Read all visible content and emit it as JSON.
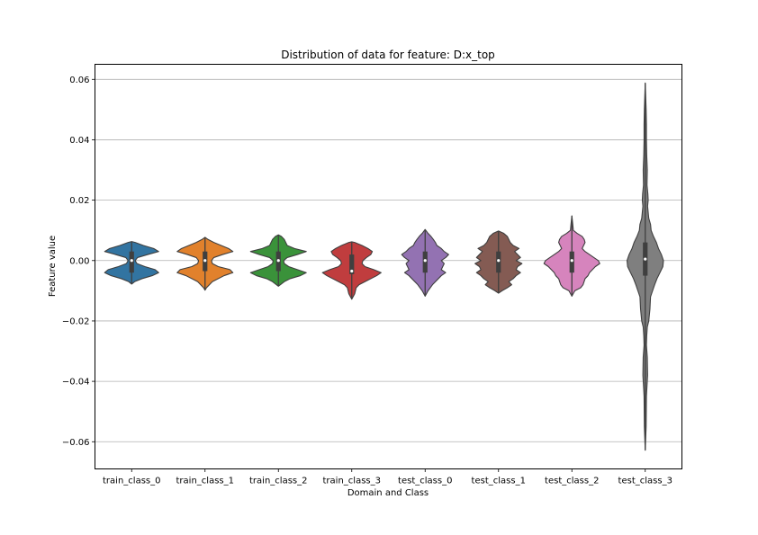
{
  "chart_data": {
    "type": "violin",
    "title": "Distribution of data for feature: D:x_top",
    "xlabel": "Domain and Class",
    "ylabel": "Feature value",
    "ylim": [
      -0.069,
      0.065
    ],
    "yticks": [
      0.06,
      0.04,
      0.02,
      0.0,
      -0.02,
      -0.04,
      -0.06
    ],
    "ytick_labels": [
      "0.06",
      "0.04",
      "0.02",
      "0.00",
      "−0.02",
      "−0.04",
      "−0.06"
    ],
    "grid": "horizontal",
    "categories": [
      "train_class_0",
      "train_class_1",
      "train_class_2",
      "train_class_3",
      "test_class_0",
      "test_class_1",
      "test_class_2",
      "test_class_3"
    ],
    "series": [
      {
        "category": "train_class_0",
        "color": "#3274a1",
        "min": -0.0078,
        "max": 0.0063,
        "q1": -0.004,
        "median": 0.0,
        "q3": 0.003,
        "profile": [
          [
            -0.0078,
            0.0
          ],
          [
            -0.007,
            0.1
          ],
          [
            -0.006,
            0.35
          ],
          [
            -0.005,
            0.7
          ],
          [
            -0.004,
            0.92
          ],
          [
            -0.003,
            0.8
          ],
          [
            -0.002,
            0.45
          ],
          [
            -0.001,
            0.18
          ],
          [
            0.0,
            0.12
          ],
          [
            0.001,
            0.2
          ],
          [
            0.002,
            0.55
          ],
          [
            0.003,
            0.92
          ],
          [
            0.004,
            0.75
          ],
          [
            0.005,
            0.4
          ],
          [
            0.006,
            0.12
          ],
          [
            0.0063,
            0.0
          ]
        ]
      },
      {
        "category": "train_class_1",
        "color": "#e1812c",
        "min": -0.0098,
        "max": 0.0077,
        "q1": -0.0035,
        "median": 0.0,
        "q3": 0.003,
        "profile": [
          [
            -0.0098,
            0.0
          ],
          [
            -0.009,
            0.05
          ],
          [
            -0.007,
            0.25
          ],
          [
            -0.005,
            0.65
          ],
          [
            -0.004,
            0.95
          ],
          [
            -0.003,
            0.85
          ],
          [
            -0.002,
            0.45
          ],
          [
            -0.001,
            0.25
          ],
          [
            0.0,
            0.22
          ],
          [
            0.001,
            0.3
          ],
          [
            0.002,
            0.6
          ],
          [
            0.003,
            0.95
          ],
          [
            0.004,
            0.8
          ],
          [
            0.005,
            0.55
          ],
          [
            0.006,
            0.3
          ],
          [
            0.007,
            0.1
          ],
          [
            0.0077,
            0.0
          ]
        ]
      },
      {
        "category": "train_class_2",
        "color": "#3a923a",
        "min": -0.0085,
        "max": 0.0085,
        "q1": -0.0035,
        "median": 0.0,
        "q3": 0.003,
        "profile": [
          [
            -0.0085,
            0.0
          ],
          [
            -0.007,
            0.2
          ],
          [
            -0.006,
            0.4
          ],
          [
            -0.005,
            0.75
          ],
          [
            -0.004,
            0.95
          ],
          [
            -0.003,
            0.65
          ],
          [
            -0.002,
            0.35
          ],
          [
            -0.001,
            0.2
          ],
          [
            0.0,
            0.18
          ],
          [
            0.001,
            0.3
          ],
          [
            0.002,
            0.65
          ],
          [
            0.003,
            0.95
          ],
          [
            0.004,
            0.55
          ],
          [
            0.005,
            0.3
          ],
          [
            0.006,
            0.25
          ],
          [
            0.007,
            0.2
          ],
          [
            0.008,
            0.1
          ],
          [
            0.0085,
            0.0
          ]
        ]
      },
      {
        "category": "train_class_3",
        "color": "#c03d3e",
        "min": -0.0128,
        "max": 0.0062,
        "q1": -0.0045,
        "median": -0.0035,
        "q3": 0.002,
        "profile": [
          [
            -0.0128,
            0.0
          ],
          [
            -0.011,
            0.1
          ],
          [
            -0.009,
            0.15
          ],
          [
            -0.008,
            0.25
          ],
          [
            -0.007,
            0.45
          ],
          [
            -0.006,
            0.65
          ],
          [
            -0.005,
            0.85
          ],
          [
            -0.004,
            1.0
          ],
          [
            -0.003,
            0.75
          ],
          [
            -0.002,
            0.45
          ],
          [
            -0.001,
            0.35
          ],
          [
            0.0,
            0.38
          ],
          [
            0.001,
            0.5
          ],
          [
            0.002,
            0.65
          ],
          [
            0.003,
            0.7
          ],
          [
            0.004,
            0.55
          ],
          [
            0.005,
            0.35
          ],
          [
            0.006,
            0.1
          ],
          [
            0.0062,
            0.0
          ]
        ]
      },
      {
        "category": "test_class_0",
        "color": "#9372b2",
        "min": -0.0118,
        "max": 0.0103,
        "q1": -0.004,
        "median": 0.0,
        "q3": 0.003,
        "profile": [
          [
            -0.0118,
            0.0
          ],
          [
            -0.01,
            0.1
          ],
          [
            -0.008,
            0.25
          ],
          [
            -0.006,
            0.45
          ],
          [
            -0.005,
            0.55
          ],
          [
            -0.004,
            0.7
          ],
          [
            -0.003,
            0.55
          ],
          [
            -0.002,
            0.6
          ],
          [
            -0.001,
            0.65
          ],
          [
            0.0,
            0.55
          ],
          [
            0.001,
            0.7
          ],
          [
            0.002,
            0.8
          ],
          [
            0.003,
            0.65
          ],
          [
            0.004,
            0.55
          ],
          [
            0.005,
            0.4
          ],
          [
            0.006,
            0.35
          ],
          [
            0.007,
            0.28
          ],
          [
            0.008,
            0.2
          ],
          [
            0.009,
            0.1
          ],
          [
            0.0103,
            0.0
          ]
        ]
      },
      {
        "category": "test_class_1",
        "color": "#845b53",
        "min": -0.0108,
        "max": 0.0098,
        "q1": -0.004,
        "median": 0.0,
        "q3": 0.003,
        "profile": [
          [
            -0.0108,
            0.0
          ],
          [
            -0.01,
            0.12
          ],
          [
            -0.009,
            0.3
          ],
          [
            -0.008,
            0.45
          ],
          [
            -0.007,
            0.35
          ],
          [
            -0.006,
            0.5
          ],
          [
            -0.005,
            0.6
          ],
          [
            -0.004,
            0.75
          ],
          [
            -0.003,
            0.6
          ],
          [
            -0.002,
            0.65
          ],
          [
            -0.001,
            0.8
          ],
          [
            0.0,
            0.6
          ],
          [
            0.001,
            0.75
          ],
          [
            0.002,
            0.65
          ],
          [
            0.003,
            0.55
          ],
          [
            0.004,
            0.7
          ],
          [
            0.005,
            0.5
          ],
          [
            0.006,
            0.4
          ],
          [
            0.007,
            0.35
          ],
          [
            0.008,
            0.3
          ],
          [
            0.009,
            0.18
          ],
          [
            0.0098,
            0.0
          ]
        ]
      },
      {
        "category": "test_class_2",
        "color": "#d684bd",
        "min": -0.0118,
        "max": 0.0148,
        "q1": -0.004,
        "median": 0.0,
        "q3": 0.003,
        "profile": [
          [
            -0.0118,
            0.0
          ],
          [
            -0.01,
            0.1
          ],
          [
            -0.009,
            0.3
          ],
          [
            -0.008,
            0.38
          ],
          [
            -0.006,
            0.45
          ],
          [
            -0.005,
            0.55
          ],
          [
            -0.004,
            0.6
          ],
          [
            -0.003,
            0.7
          ],
          [
            -0.002,
            0.8
          ],
          [
            -0.001,
            0.95
          ],
          [
            0.0,
            0.9
          ],
          [
            0.001,
            0.75
          ],
          [
            0.002,
            0.6
          ],
          [
            0.003,
            0.45
          ],
          [
            0.004,
            0.35
          ],
          [
            0.005,
            0.4
          ],
          [
            0.006,
            0.45
          ],
          [
            0.007,
            0.42
          ],
          [
            0.008,
            0.35
          ],
          [
            0.009,
            0.18
          ],
          [
            0.01,
            0.05
          ],
          [
            0.012,
            0.03
          ],
          [
            0.0148,
            0.0
          ]
        ]
      },
      {
        "category": "test_class_3",
        "color": "#7f7f7f",
        "min": -0.0628,
        "max": 0.0588,
        "q1": -0.005,
        "median": 0.0005,
        "q3": 0.006,
        "profile": [
          [
            -0.0628,
            0.0
          ],
          [
            -0.055,
            0.03
          ],
          [
            -0.045,
            0.04
          ],
          [
            -0.038,
            0.08
          ],
          [
            -0.032,
            0.07
          ],
          [
            -0.028,
            0.04
          ],
          [
            -0.025,
            0.05
          ],
          [
            -0.022,
            0.07
          ],
          [
            -0.02,
            0.12
          ],
          [
            -0.016,
            0.16
          ],
          [
            -0.012,
            0.18
          ],
          [
            -0.01,
            0.25
          ],
          [
            -0.008,
            0.32
          ],
          [
            -0.006,
            0.4
          ],
          [
            -0.004,
            0.5
          ],
          [
            -0.002,
            0.6
          ],
          [
            0.0,
            0.62
          ],
          [
            0.002,
            0.55
          ],
          [
            0.004,
            0.45
          ],
          [
            0.006,
            0.38
          ],
          [
            0.008,
            0.28
          ],
          [
            0.01,
            0.2
          ],
          [
            0.012,
            0.18
          ],
          [
            0.014,
            0.12
          ],
          [
            0.016,
            0.1
          ],
          [
            0.018,
            0.08
          ],
          [
            0.02,
            0.1
          ],
          [
            0.022,
            0.09
          ],
          [
            0.025,
            0.06
          ],
          [
            0.03,
            0.07
          ],
          [
            0.035,
            0.05
          ],
          [
            0.04,
            0.04
          ],
          [
            0.045,
            0.04
          ],
          [
            0.05,
            0.03
          ],
          [
            0.0588,
            0.0
          ]
        ]
      }
    ]
  }
}
